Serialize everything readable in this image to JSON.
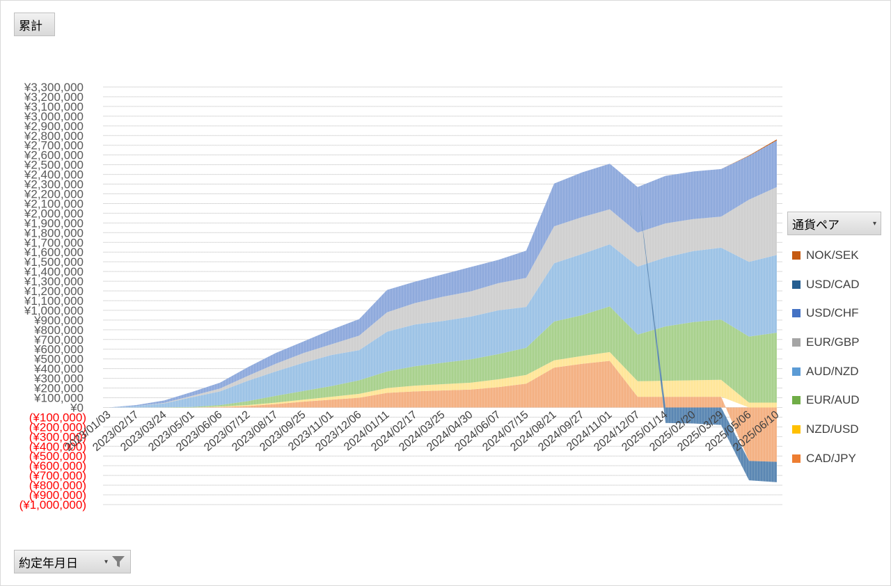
{
  "values_button": {
    "label": "累計"
  },
  "date_filter": {
    "label": "約定年月日"
  },
  "legend_header": {
    "label": "通貨ペア"
  },
  "chart_data": {
    "type": "area",
    "stacked": true,
    "grid": true,
    "legend_position": "right",
    "ylim": [
      -1000000,
      3300000
    ],
    "y_tick_step": 100000,
    "y_tick_labels": {
      "positive": [
        "¥0",
        "¥100,000",
        "¥200,000",
        "¥300,000",
        "¥400,000",
        "¥500,000",
        "¥600,000",
        "¥700,000",
        "¥800,000",
        "¥900,000",
        "¥1,000,000",
        "¥1,100,000",
        "¥1,200,000",
        "¥1,300,000",
        "¥1,400,000",
        "¥1,500,000",
        "¥1,600,000",
        "¥1,700,000",
        "¥1,800,000",
        "¥1,900,000",
        "¥2,000,000",
        "¥2,100,000",
        "¥2,200,000",
        "¥2,300,000",
        "¥2,400,000",
        "¥2,500,000",
        "¥2,600,000",
        "¥2,700,000",
        "¥2,800,000",
        "¥2,900,000",
        "¥3,000,000",
        "¥3,100,000",
        "¥3,200,000",
        "¥3,300,000"
      ],
      "negative": [
        "(¥100,000)",
        "(¥200,000)",
        "(¥300,000)",
        "(¥400,000)",
        "(¥500,000)",
        "(¥600,000)",
        "(¥700,000)",
        "(¥800,000)",
        "(¥900,000)",
        "(¥1,000,000)"
      ]
    },
    "colors": {
      "positive_tick": "#595959",
      "negative_tick": "#ff0000",
      "grid": "#d9d9d9"
    },
    "x_tick_labels": [
      "2023/01/03",
      "2023/02/17",
      "2023/03/24",
      "2023/05/01",
      "2023/06/06",
      "2023/07/12",
      "2023/08/17",
      "2023/09/25",
      "2023/11/01",
      "2023/12/06",
      "2024/01/11",
      "2024/02/17",
      "2024/03/25",
      "2024/04/30",
      "2024/06/07",
      "2024/07/15",
      "2024/08/21",
      "2024/09/27",
      "2024/11/01",
      "2024/12/07",
      "2025/01/14",
      "2025/02/20",
      "2025/03/29",
      "2025/05/06",
      "2025/06/10"
    ],
    "series": [
      {
        "name": "CAD/JPY",
        "color": "#f4b183",
        "values": [
          0,
          0,
          0,
          0,
          5000,
          15000,
          35000,
          60000,
          80000,
          100000,
          150000,
          165000,
          175000,
          185000,
          210000,
          245000,
          410000,
          450000,
          480000,
          110000,
          110000,
          110000,
          110000,
          -550000,
          -560000
        ]
      },
      {
        "name": "NZD/USD",
        "color": "#ffe699",
        "values": [
          0,
          0,
          0,
          0,
          5000,
          10000,
          15000,
          20000,
          30000,
          40000,
          50000,
          60000,
          65000,
          70000,
          80000,
          90000,
          75000,
          80000,
          90000,
          160000,
          165000,
          170000,
          175000,
          50000,
          50000
        ]
      },
      {
        "name": "EUR/AUD",
        "color": "#a9d18e",
        "values": [
          0,
          0,
          2000,
          5000,
          15000,
          40000,
          70000,
          90000,
          110000,
          140000,
          170000,
          200000,
          220000,
          240000,
          260000,
          280000,
          400000,
          420000,
          470000,
          480000,
          560000,
          600000,
          620000,
          680000,
          720000
        ]
      },
      {
        "name": "AUD/NZD",
        "color": "#9dc3e6",
        "values": [
          0,
          15000,
          40000,
          100000,
          140000,
          210000,
          250000,
          290000,
          320000,
          310000,
          410000,
          430000,
          430000,
          440000,
          450000,
          420000,
          600000,
          630000,
          640000,
          700000,
          710000,
          730000,
          740000,
          770000,
          800000
        ]
      },
      {
        "name": "EUR/GBP",
        "color": "#d0d0d0",
        "values": [
          0,
          0,
          5000,
          15000,
          30000,
          50000,
          80000,
          100000,
          110000,
          150000,
          200000,
          220000,
          250000,
          260000,
          280000,
          300000,
          380000,
          380000,
          360000,
          350000,
          350000,
          330000,
          320000,
          640000,
          700000
        ]
      },
      {
        "name": "USD/CHF",
        "color": "#8faadc",
        "values": [
          0,
          10000,
          25000,
          40000,
          60000,
          90000,
          110000,
          120000,
          150000,
          170000,
          230000,
          220000,
          230000,
          250000,
          240000,
          280000,
          440000,
          460000,
          470000,
          470000,
          490000,
          490000,
          490000,
          450000,
          480000
        ]
      },
      {
        "name": "USD/CAD",
        "color": "#5b87b3",
        "values": [
          0,
          0,
          0,
          0,
          0,
          0,
          0,
          0,
          0,
          0,
          0,
          0,
          0,
          0,
          0,
          0,
          0,
          0,
          0,
          0,
          -160000,
          -165000,
          -180000,
          -200000,
          -210000
        ]
      },
      {
        "name": "NOK/SEK",
        "color": "#c55a11",
        "values": [
          0,
          0,
          0,
          0,
          0,
          0,
          0,
          0,
          0,
          0,
          0,
          0,
          0,
          0,
          0,
          0,
          0,
          0,
          0,
          0,
          0,
          0,
          0,
          5000,
          10000
        ]
      }
    ]
  }
}
